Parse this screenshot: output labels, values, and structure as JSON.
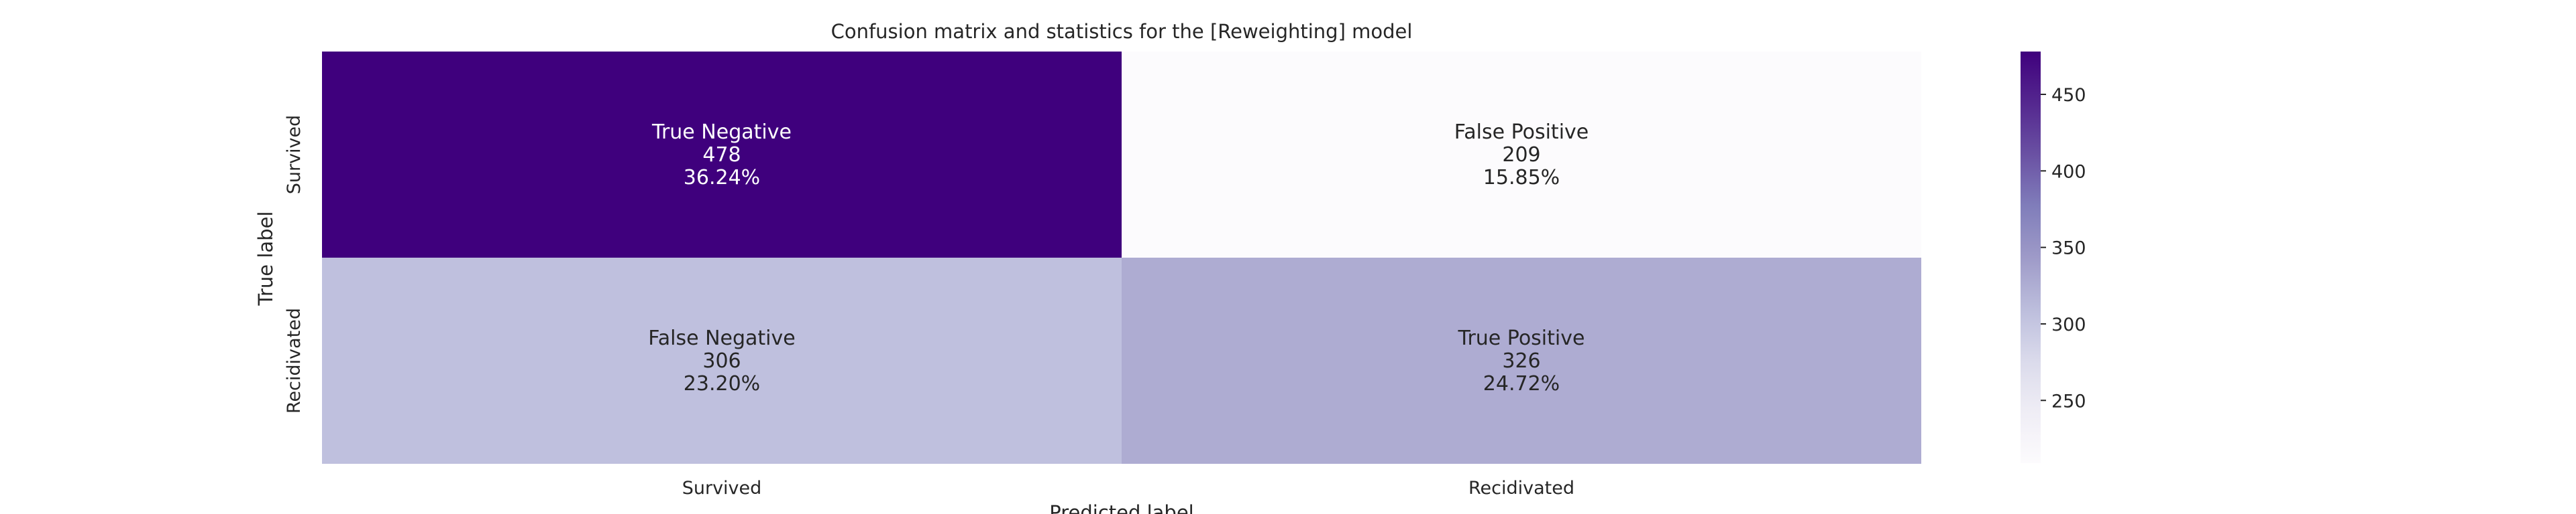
{
  "chart_data": {
    "type": "heatmap",
    "title": "Confusion matrix and statistics for the [Reweighting] model",
    "xlabel": "Predicted label",
    "ylabel": "True label",
    "x_categories": [
      "Survived",
      "Recidivated"
    ],
    "y_categories": [
      "Survived",
      "Recidivated"
    ],
    "cells": [
      [
        {
          "label": "True Negative",
          "value": 478,
          "percent": "36.24%"
        },
        {
          "label": "False Positive",
          "value": 209,
          "percent": "15.85%"
        }
      ],
      [
        {
          "label": "False Negative",
          "value": 306,
          "percent": "23.20%"
        },
        {
          "label": "True Positive",
          "value": 326,
          "percent": "24.72%"
        }
      ]
    ],
    "colormap": "Purples",
    "colorbar": {
      "range": [
        209,
        478
      ],
      "ticks": [
        250,
        300,
        350,
        400,
        450
      ],
      "tick_labels": [
        "250",
        "300",
        "350",
        "400",
        "450"
      ]
    },
    "colors": {
      "low": "#fcfbfd",
      "high": "#3f007d",
      "text_dark": "#262626",
      "text_light": "#ffffff"
    },
    "grid": false
  }
}
